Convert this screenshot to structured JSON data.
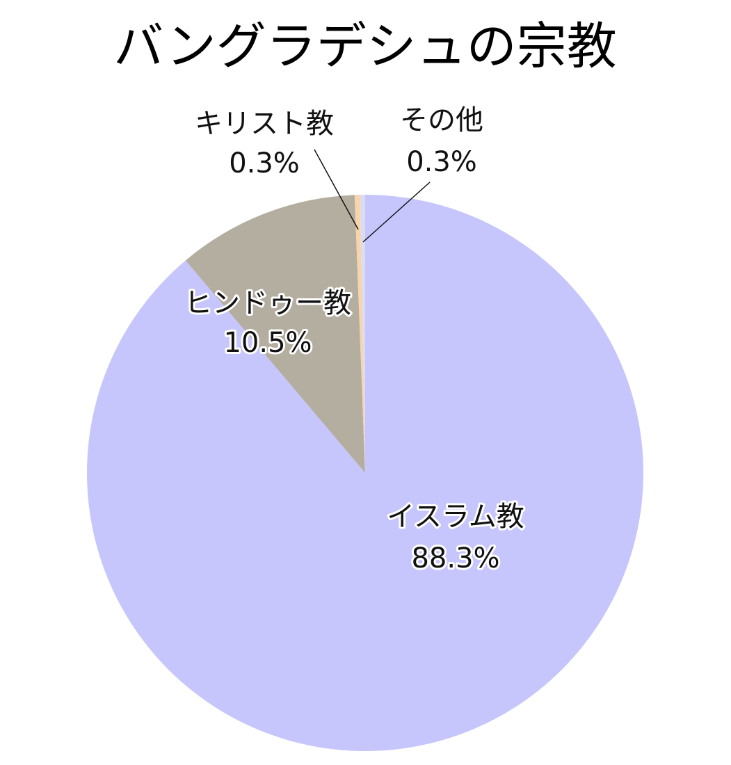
{
  "chart_data": {
    "type": "pie",
    "title": "バングラデシュの宗教",
    "categories": [
      "イスラム教",
      "ヒンドゥー教",
      "キリスト教",
      "その他"
    ],
    "values": [
      88.3,
      10.5,
      0.3,
      0.3
    ],
    "value_labels": [
      "88.3%",
      "10.5%",
      "0.3%",
      "0.3%"
    ],
    "colors": [
      "#c6c6fc",
      "#b3ae9f",
      "#f8d4a8",
      "#dcdcf0"
    ]
  }
}
